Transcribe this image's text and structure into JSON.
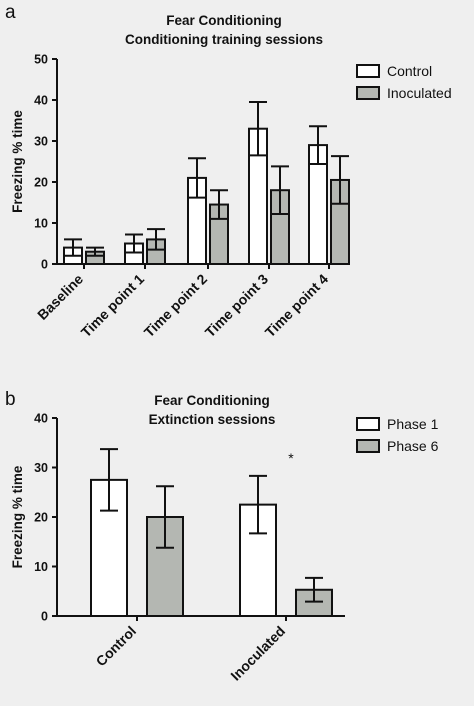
{
  "chart_data": [
    {
      "panel": "a",
      "type": "bar",
      "title": "Fear Conditioning",
      "subtitle": "Conditioning training sessions",
      "ylabel": "Freezing % time",
      "xlabel": "",
      "ylim": [
        0,
        50
      ],
      "yticks": [
        "0",
        "10",
        "20",
        "30",
        "40",
        "50"
      ],
      "categories": [
        "Baseline",
        "Time point 1",
        "Time point 2",
        "Time point 3",
        "Time point 4"
      ],
      "legend_position": "top-right",
      "series": [
        {
          "name": "Control",
          "color": "#ffffff",
          "values": [
            4,
            5,
            21,
            33,
            29
          ],
          "errors": [
            2,
            2.2,
            4.8,
            6.5,
            4.6
          ]
        },
        {
          "name": "Inoculated",
          "color": "#b4b7b2",
          "values": [
            3,
            6,
            14.5,
            18,
            20.5
          ],
          "errors": [
            1,
            2.5,
            3.5,
            5.8,
            5.8
          ]
        }
      ],
      "annotations": []
    },
    {
      "panel": "b",
      "type": "bar",
      "title": "Fear Conditioning",
      "subtitle": "Extinction sessions",
      "ylabel": "Freezing % time",
      "xlabel": "",
      "ylim": [
        0,
        40
      ],
      "yticks": [
        "0",
        "10",
        "20",
        "30",
        "40"
      ],
      "categories": [
        "Control",
        "Inoculated"
      ],
      "legend_position": "top-right",
      "series": [
        {
          "name": "Phase 1",
          "color": "#ffffff",
          "values": [
            27.5,
            22.5
          ],
          "errors": [
            6.2,
            5.8
          ]
        },
        {
          "name": "Phase 6",
          "color": "#b4b7b2",
          "values": [
            20,
            5.3
          ],
          "errors": [
            6.2,
            2.4
          ]
        }
      ],
      "annotations": [
        "*"
      ]
    }
  ]
}
